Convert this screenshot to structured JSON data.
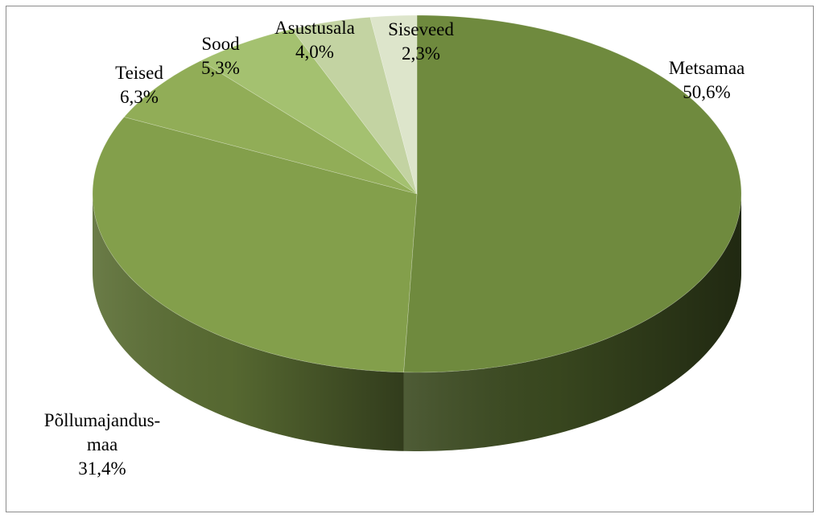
{
  "colors": {
    "frame_border": "#8c8c8c",
    "text": "#000000"
  },
  "chart_data": {
    "type": "pie",
    "style": "3d",
    "title": "",
    "slices": [
      {
        "label": "Metsamaa",
        "value": 50.6,
        "display": "50,6%",
        "color": "#6f8a3e",
        "side_color": "#3b4a20"
      },
      {
        "label": "Põllumajandus-maa",
        "label_lines": [
          "Põllumajandus-",
          "maa"
        ],
        "value": 31.4,
        "display": "31,4%",
        "color": "#839f4b",
        "side_color": "#5a6d33"
      },
      {
        "label": "Teised",
        "value": 6.3,
        "display": "6,3%",
        "color": "#91ad57",
        "side_color": "#6a8040"
      },
      {
        "label": "Sood",
        "value": 5.3,
        "display": "5,3%",
        "color": "#a4c170",
        "side_color": "#7d9655"
      },
      {
        "label": "Asustusala",
        "value": 4.0,
        "display": "4,0%",
        "color": "#c3d3a2",
        "side_color": "#98a87a"
      },
      {
        "label": "Siseveed",
        "value": 2.3,
        "display": "2,3%",
        "color": "#dde5cb",
        "side_color": "#b0ba9c"
      }
    ]
  }
}
